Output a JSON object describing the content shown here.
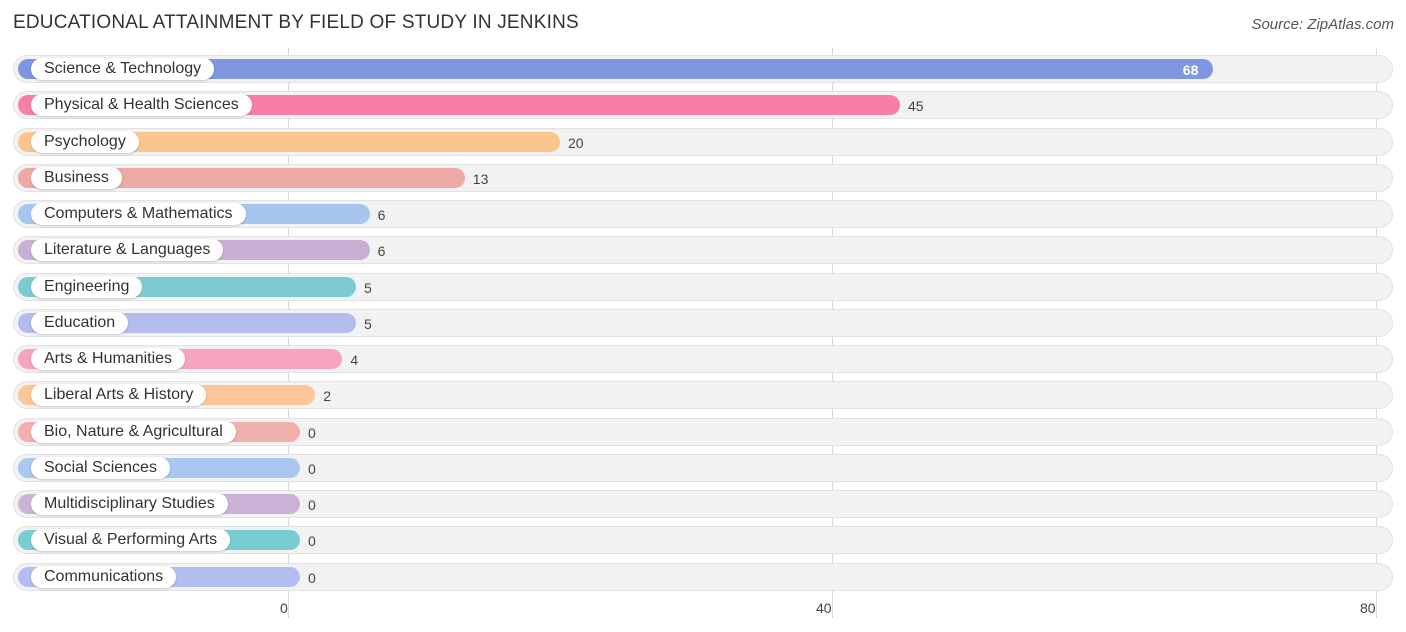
{
  "header": {
    "title": "EDUCATIONAL ATTAINMENT BY FIELD OF STUDY IN JENKINS",
    "source": "Source: ZipAtlas.com"
  },
  "chart_data": {
    "type": "bar",
    "orientation": "horizontal",
    "title": "EDUCATIONAL ATTAINMENT BY FIELD OF STUDY IN JENKINS",
    "xlabel": "",
    "ylabel": "",
    "xlim": [
      0,
      80
    ],
    "x_ticks": [
      "0",
      "40",
      "80"
    ],
    "grid": true,
    "legend": "none",
    "categories": [
      "Science & Technology",
      "Physical & Health Sciences",
      "Psychology",
      "Business",
      "Computers & Mathematics",
      "Literature & Languages",
      "Engineering",
      "Education",
      "Arts & Humanities",
      "Liberal Arts & History",
      "Bio, Nature & Agricultural",
      "Social Sciences",
      "Multidisciplinary Studies",
      "Visual & Performing Arts",
      "Communications"
    ],
    "values": [
      68,
      45,
      20,
      13,
      6,
      6,
      5,
      5,
      4,
      2,
      0,
      0,
      0,
      0,
      0
    ],
    "colors": [
      "#7f96e0",
      "#f77fa6",
      "#fbc58e",
      "#eda9a3",
      "#a7c6ee",
      "#cbaed3",
      "#7ccbd1",
      "#b3bced",
      "#f6a4bf",
      "#fbc799",
      "#f2b0ac",
      "#a9c7ef",
      "#cbb3d8",
      "#79ccd0",
      "#b4bdf0"
    ]
  }
}
